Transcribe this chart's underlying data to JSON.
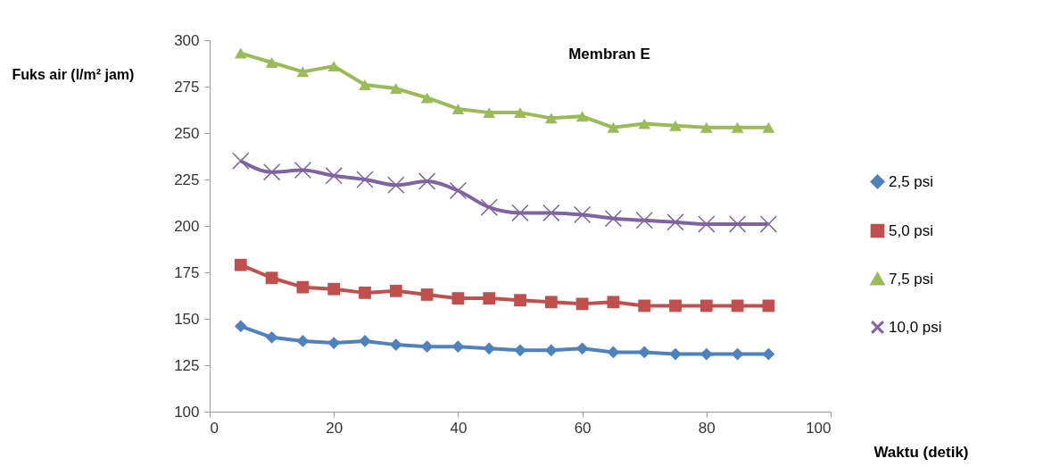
{
  "chart_data": {
    "type": "line",
    "title": "Membran E",
    "xlabel": "Waktu (detik)",
    "ylabel": "Fuks air (l/m² jam)",
    "x": [
      5,
      10,
      15,
      20,
      25,
      30,
      35,
      40,
      45,
      50,
      55,
      60,
      65,
      70,
      75,
      80,
      85,
      90
    ],
    "xlim": [
      0,
      100
    ],
    "xticks": [
      0,
      20,
      40,
      60,
      80,
      100
    ],
    "ylim": [
      100,
      300
    ],
    "yticks": [
      100,
      125,
      150,
      175,
      200,
      225,
      250,
      275,
      300
    ],
    "grid": false,
    "legend": "right",
    "line_style": "solid",
    "series": [
      {
        "name": "2,5 psi",
        "color": "#4f81bd",
        "marker": "diamond",
        "values": [
          146,
          140,
          138,
          137,
          138,
          136,
          135,
          135,
          134,
          133,
          133,
          134,
          132,
          132,
          131,
          131,
          131,
          131
        ]
      },
      {
        "name": "5,0 psi",
        "color": "#c0504d",
        "marker": "square",
        "values": [
          179,
          172,
          167,
          166,
          164,
          165,
          163,
          161,
          161,
          160,
          159,
          158,
          159,
          157,
          157,
          157,
          157,
          157
        ]
      },
      {
        "name": "7,5 psi",
        "color": "#9bbb59",
        "marker": "triangle",
        "values": [
          293,
          288,
          283,
          286,
          276,
          274,
          269,
          263,
          261,
          261,
          258,
          259,
          253,
          255,
          254,
          253,
          253,
          253
        ]
      },
      {
        "name": "10,0 psi",
        "color": "#8064a2",
        "marker": "cross",
        "values": [
          235,
          229,
          230,
          227,
          225,
          222,
          224,
          219,
          210,
          207,
          207,
          206,
          204,
          203,
          202,
          201,
          201,
          201
        ]
      }
    ]
  }
}
